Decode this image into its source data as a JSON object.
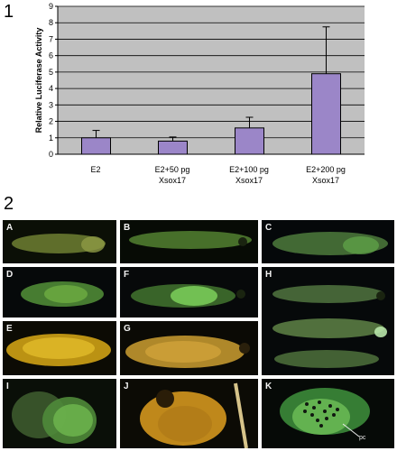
{
  "figure_labels": {
    "part1": "1",
    "part2": "2"
  },
  "chart_data": {
    "type": "bar",
    "categories": [
      "E2",
      "E2+50 pg Xsox17",
      "E2+100 pg Xsox17",
      "E2+200 pg Xsox17"
    ],
    "category_lines": [
      [
        "E2",
        ""
      ],
      [
        "E2+50 pg",
        "Xsox17"
      ],
      [
        "E2+100 pg",
        "Xsox17"
      ],
      [
        "E2+200 pg",
        "Xsox17"
      ]
    ],
    "values": [
      1.0,
      0.8,
      1.6,
      4.9
    ],
    "errors": [
      0.45,
      0.25,
      0.65,
      2.85
    ],
    "ylabel": "Relative Luciferase Activity",
    "ylim": [
      0,
      9
    ],
    "yticks": [
      "0",
      "1",
      "2",
      "3",
      "4",
      "5",
      "6",
      "7",
      "8",
      "9"
    ],
    "grid": true,
    "colors": {
      "bar": "#9b86c8",
      "bar_edge": "#000000",
      "plot_bg": "#c0c0c0",
      "grid": "#000000"
    }
  },
  "panels": [
    {
      "label": "A",
      "tone": "green"
    },
    {
      "label": "B",
      "tone": "green"
    },
    {
      "label": "C",
      "tone": "green"
    },
    {
      "label": "D",
      "tone": "green"
    },
    {
      "label": "F",
      "tone": "green"
    },
    {
      "label": "H",
      "tone": "green"
    },
    {
      "label": "E",
      "tone": "yellow"
    },
    {
      "label": "G",
      "tone": "yellow"
    },
    {
      "label": "I",
      "tone": "green"
    },
    {
      "label": "J",
      "tone": "yellow"
    },
    {
      "label": "K",
      "tone": "green"
    }
  ],
  "annotations": {
    "k_label": "pc"
  }
}
